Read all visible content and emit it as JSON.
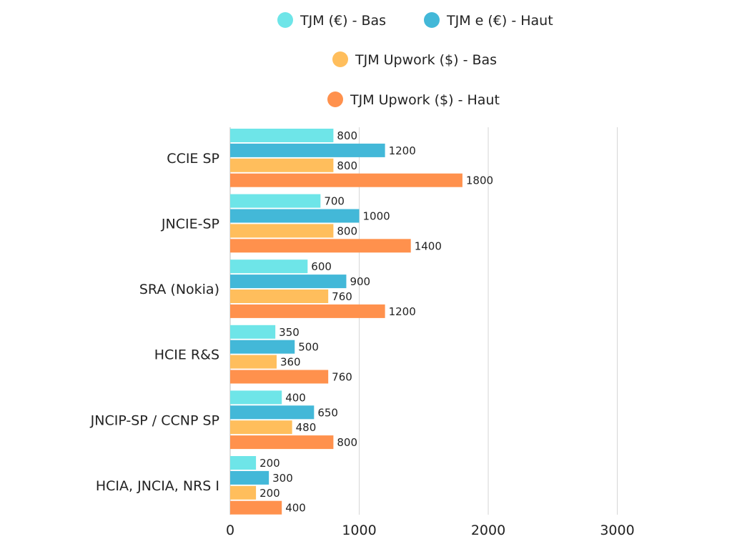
{
  "chart_data": {
    "type": "bar",
    "orientation": "horizontal",
    "title": "",
    "xlabel": "",
    "ylabel": "",
    "xlim": [
      0,
      3000
    ],
    "xticks": [
      0,
      1000,
      2000,
      3000
    ],
    "grid": true,
    "legend_position": "top",
    "categories": [
      "CCIE SP",
      "JNCIE-SP",
      "SRA (Nokia)",
      "HCIE R&S",
      "JNCIP-SP / CCNP SP",
      "HCIA, JNCIA, NRS I"
    ],
    "series": [
      {
        "name": "TJM (€) - Bas",
        "color": "#6ee5e8",
        "values": [
          800,
          700,
          600,
          350,
          400,
          200
        ]
      },
      {
        "name": "TJM e (€) - Haut",
        "color": "#43b8d8",
        "values": [
          1200,
          1000,
          900,
          500,
          650,
          300
        ]
      },
      {
        "name": "TJM Upwork ($) - Bas",
        "color": "#ffbe5c",
        "values": [
          800,
          800,
          760,
          360,
          480,
          200
        ]
      },
      {
        "name": "TJM Upwork ($) - Haut",
        "color": "#ff914d",
        "values": [
          1800,
          1400,
          1200,
          760,
          800,
          400
        ]
      }
    ]
  }
}
